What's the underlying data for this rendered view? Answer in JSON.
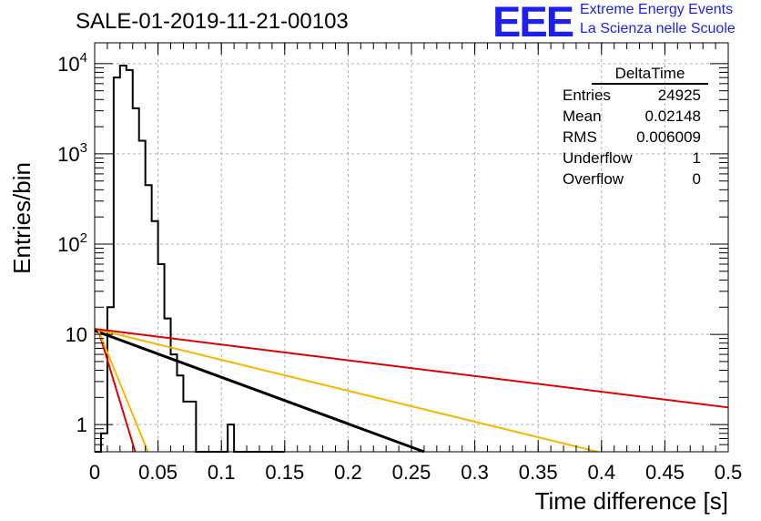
{
  "title": "SALE-01-2019-11-21-00103",
  "logo": {
    "mark": "EEE",
    "line1": "Extreme Energy Events",
    "line2": "La Scienza nelle Scuole"
  },
  "stats": {
    "name": "DeltaTime",
    "rows": [
      {
        "label": "Entries",
        "value": "24925"
      },
      {
        "label": "Mean",
        "value": "0.02148"
      },
      {
        "label": "RMS",
        "value": "0.006009"
      },
      {
        "label": "Underflow",
        "value": "1"
      },
      {
        "label": "Overflow",
        "value": "0"
      }
    ]
  },
  "colors": {
    "hist": "#000000",
    "black_fit": "#000000",
    "orange_fit": "#f5b800",
    "red_fit": "#dd0000",
    "grid": "#b0b0b0"
  },
  "chart_data": {
    "type": "line",
    "xlabel": "Time difference [s]",
    "ylabel": "Entries/bin",
    "xlim": [
      0,
      0.5
    ],
    "ylim": [
      0.5,
      17000
    ],
    "yscale": "log",
    "grid": true,
    "xticks": [
      0,
      0.05,
      0.1,
      0.15,
      0.2,
      0.25,
      0.3,
      0.35,
      0.4,
      0.45,
      0.5
    ],
    "xtick_labels": [
      "0",
      "0.05",
      "0.1",
      "0.15",
      "0.2",
      "0.25",
      "0.3",
      "0.35",
      "0.4",
      "0.45",
      "0.5"
    ],
    "ytick_labels": [
      {
        "value": 1,
        "base": "1",
        "exp": ""
      },
      {
        "value": 10,
        "base": "10",
        "exp": ""
      },
      {
        "value": 100,
        "base": "10",
        "exp": "2"
      },
      {
        "value": 1000,
        "base": "10",
        "exp": "3"
      },
      {
        "value": 10000,
        "base": "10",
        "exp": "4"
      }
    ],
    "histogram": {
      "bin_width": 0.005,
      "counts": [
        0,
        0.8,
        20,
        7000,
        9500,
        8500,
        3200,
        1400,
        450,
        180,
        60,
        15,
        6,
        3.5,
        1.8,
        1.8,
        0.4,
        0,
        0,
        0,
        0,
        1,
        0,
        0,
        0,
        0,
        0,
        0,
        0,
        0
      ]
    },
    "series": [
      {
        "color": "black",
        "x": [
          0,
          0.26
        ],
        "y": [
          11,
          0.5
        ]
      },
      {
        "color": "orange",
        "x": [
          0,
          0.397
        ],
        "y": [
          11.5,
          0.5
        ]
      },
      {
        "color": "red",
        "x": [
          0,
          0.5
        ],
        "y": [
          11.5,
          1.55
        ]
      },
      {
        "color": "red",
        "x": [
          0.003,
          0.032
        ],
        "y": [
          11,
          0.5
        ]
      },
      {
        "color": "orange",
        "x": [
          0.003,
          0.042
        ],
        "y": [
          11,
          0.5
        ]
      }
    ]
  }
}
